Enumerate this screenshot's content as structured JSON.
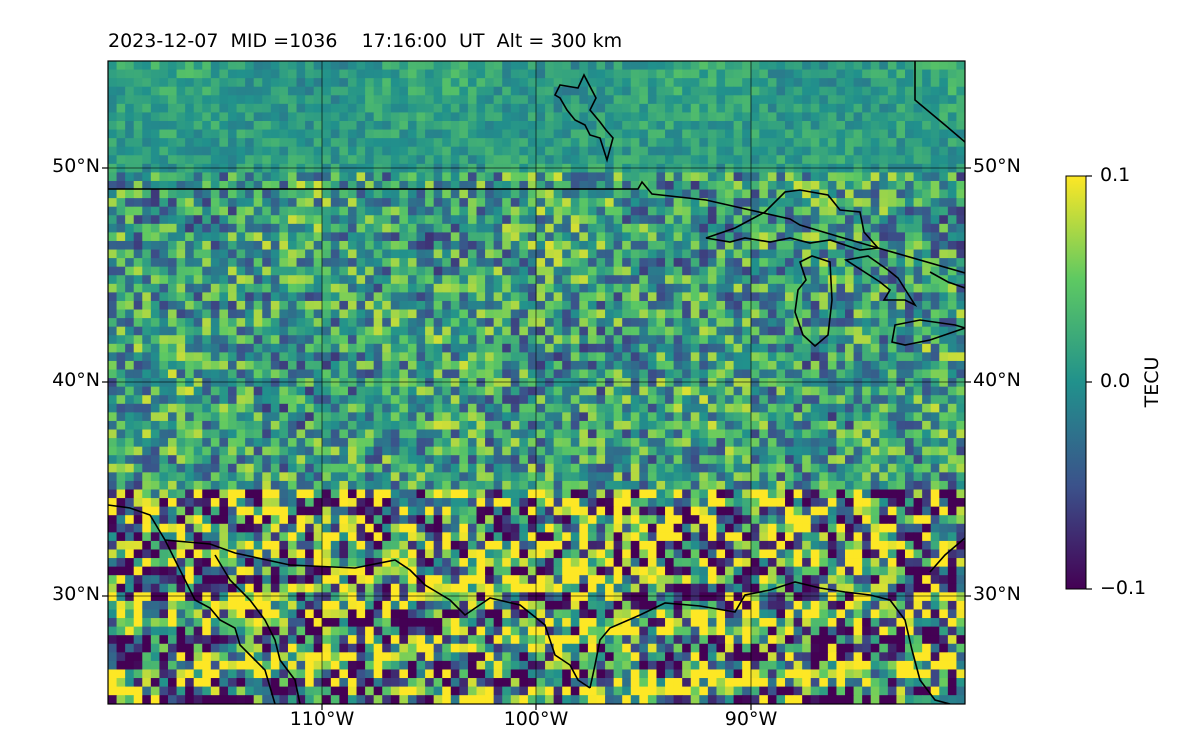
{
  "title": "2023-12-07  MID =1036    17:16:00  UT  Alt = 300 km",
  "map": {
    "projection": "PlateCarree",
    "lon_range": [
      -120,
      -80
    ],
    "lat_range": [
      25,
      55
    ],
    "gridlines": true,
    "lat_labels": [
      "50°N",
      "40°N",
      "30°N"
    ],
    "lon_labels": [
      "110°W",
      "100°W",
      "90°W"
    ],
    "features": [
      "coastlines",
      "country-borders",
      "great-lakes"
    ],
    "colormap": "viridis",
    "pattern_note": "dTEC perturbation map, noisy mid latitudes, strong banded structure along Gulf coast"
  },
  "colorbar": {
    "label": "TECU",
    "ticks": [
      "0.1",
      "0.0",
      "−0.1"
    ],
    "min": -0.1,
    "max": 0.1
  }
}
